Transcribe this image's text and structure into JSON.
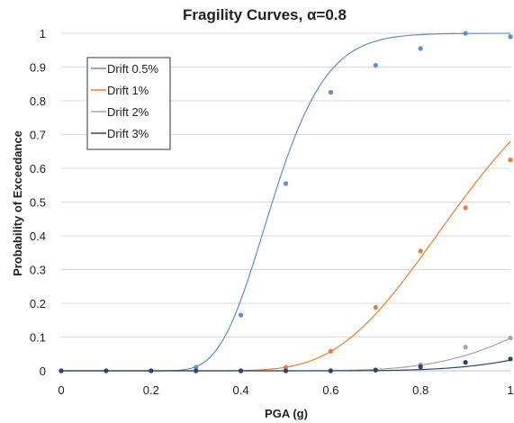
{
  "chart_data": {
    "type": "scatter",
    "title": "Fragility Curves, α=0.8",
    "xlabel": "PGA (g)",
    "ylabel": "Probability of Exceedance",
    "xlim": [
      0,
      1
    ],
    "ylim": [
      0,
      1
    ],
    "xticks": [
      "0",
      "0.2",
      "0.4",
      "0.6",
      "0.8",
      "1"
    ],
    "yticks": [
      "0",
      "0.1",
      "0.2",
      "0.3",
      "0.4",
      "0.5",
      "0.6",
      "0.7",
      "0.8",
      "0.9",
      "1"
    ],
    "grid": "horizontal",
    "legend_position": "top-left",
    "x": [
      0,
      0.1,
      0.2,
      0.3,
      0.4,
      0.5,
      0.6,
      0.7,
      0.8,
      0.9,
      1.0
    ],
    "series": [
      {
        "name": "Drift 0.5%",
        "color": "#5b8fd4",
        "values": [
          0.0,
          0.0,
          0.0,
          0.01,
          0.165,
          0.555,
          0.825,
          0.905,
          0.955,
          1.0,
          0.99
        ],
        "fit": {
          "median": 0.47,
          "beta": 0.2
        }
      },
      {
        "name": "Drift 1%",
        "color": "#ed7d31",
        "values": [
          0.0,
          0.0,
          0.0,
          0.0,
          0.0,
          0.01,
          0.058,
          0.188,
          0.355,
          0.483,
          0.625
        ],
        "fit": {
          "median": 0.89,
          "beta": 0.25
        }
      },
      {
        "name": "Drift 2%",
        "color": "#a5a5a5",
        "values": [
          0.0,
          0.0,
          0.0,
          0.0,
          0.0,
          0.0,
          0.0,
          0.003,
          0.018,
          0.07,
          0.097
        ],
        "fit": {
          "median": 1.42,
          "beta": 0.27
        }
      },
      {
        "name": "Drift 3%",
        "color": "#264478",
        "values": [
          0.0,
          0.0,
          0.0,
          0.0,
          0.0,
          0.0,
          0.0,
          0.002,
          0.012,
          0.025,
          0.035
        ],
        "fit": {
          "median": 1.65,
          "beta": 0.27
        }
      }
    ]
  }
}
